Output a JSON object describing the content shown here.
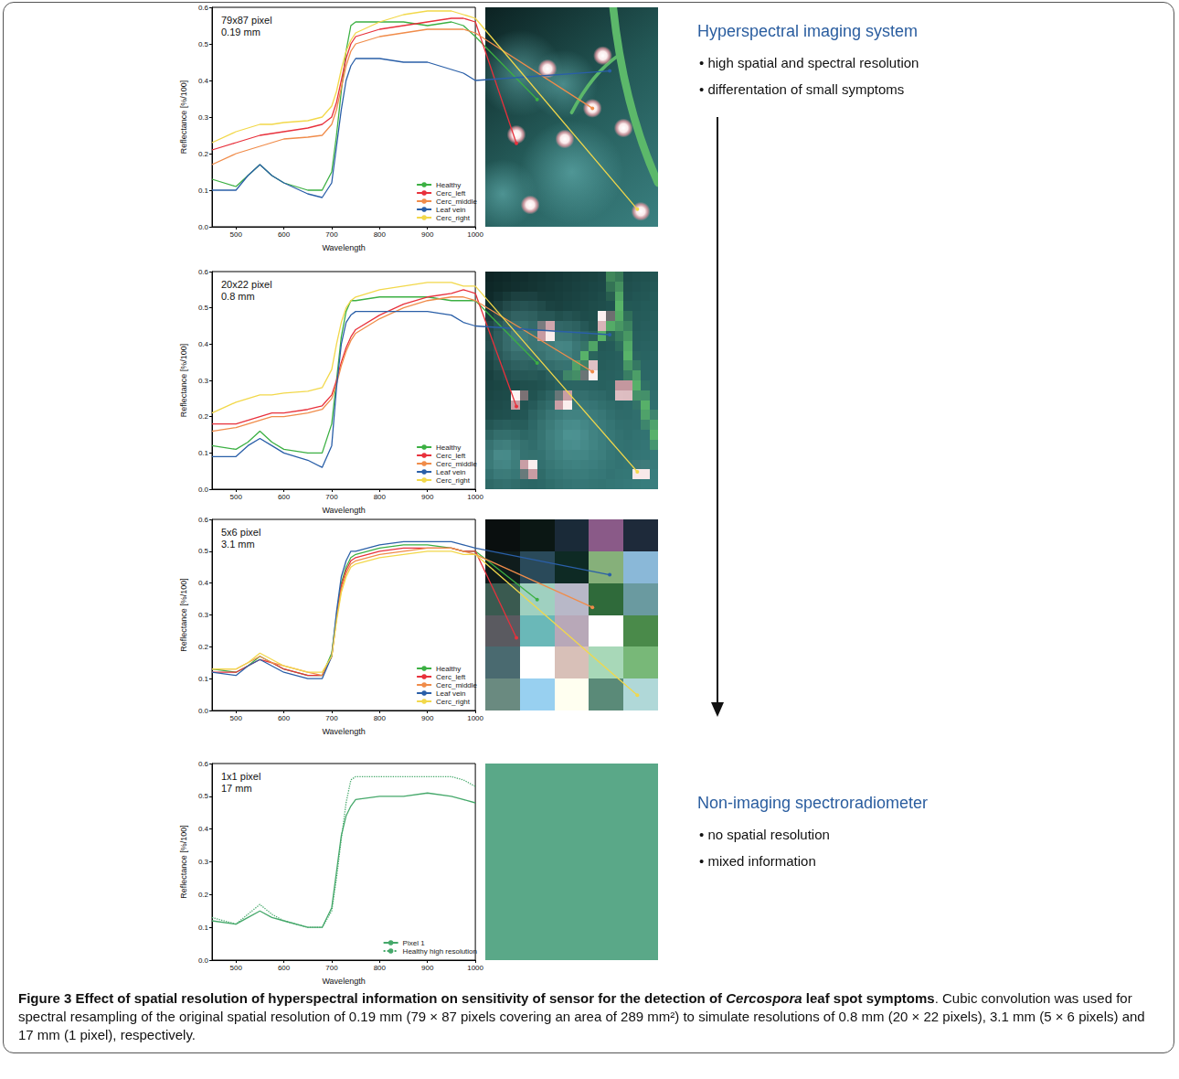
{
  "chart_data": [
    {
      "type": "line",
      "title": "79x87 pixel",
      "subtitle": "0.19 mm",
      "x_label": "Wavelength",
      "y_label": "Reflectance [%/100]",
      "x": [
        450,
        500,
        525,
        550,
        575,
        600,
        650,
        680,
        700,
        710,
        720,
        730,
        740,
        750,
        800,
        850,
        900,
        950,
        975,
        1000
      ],
      "series": [
        {
          "name": "Healthy",
          "color": "#3cb043",
          "values": [
            0.13,
            0.11,
            0.14,
            0.17,
            0.14,
            0.12,
            0.1,
            0.1,
            0.15,
            0.25,
            0.37,
            0.48,
            0.55,
            0.56,
            0.56,
            0.56,
            0.55,
            0.56,
            0.55,
            0.52
          ]
        },
        {
          "name": "Cerc_left",
          "color": "#e8313c",
          "values": [
            0.21,
            0.23,
            0.24,
            0.25,
            0.255,
            0.26,
            0.27,
            0.28,
            0.3,
            0.34,
            0.4,
            0.46,
            0.5,
            0.52,
            0.54,
            0.55,
            0.56,
            0.57,
            0.57,
            0.56
          ]
        },
        {
          "name": "Cerc_middle",
          "color": "#f08c4a",
          "values": [
            0.17,
            0.2,
            0.21,
            0.22,
            0.23,
            0.24,
            0.245,
            0.25,
            0.28,
            0.32,
            0.38,
            0.44,
            0.48,
            0.5,
            0.52,
            0.53,
            0.54,
            0.54,
            0.54,
            0.53
          ]
        },
        {
          "name": "Leaf vein",
          "color": "#2a5fa8",
          "values": [
            0.1,
            0.1,
            0.14,
            0.17,
            0.14,
            0.12,
            0.09,
            0.08,
            0.12,
            0.22,
            0.32,
            0.4,
            0.44,
            0.46,
            0.46,
            0.45,
            0.45,
            0.43,
            0.42,
            0.4
          ]
        },
        {
          "name": "Cerc_right",
          "color": "#f2d84a",
          "values": [
            0.23,
            0.26,
            0.27,
            0.28,
            0.28,
            0.285,
            0.29,
            0.3,
            0.33,
            0.37,
            0.43,
            0.48,
            0.51,
            0.53,
            0.56,
            0.58,
            0.59,
            0.59,
            0.58,
            0.57
          ]
        }
      ],
      "xlim": [
        450,
        1000
      ],
      "xticks": [
        500,
        600,
        700,
        800,
        900,
        1000
      ],
      "ylim": [
        0,
        0.6
      ],
      "yticks": [
        {
          "value": 0,
          "label": "0.0"
        },
        0.1,
        0.2,
        0.3,
        0.4,
        0.5,
        0.6
      ],
      "grid": false,
      "legend": "lower right"
    },
    {
      "type": "line",
      "title": "20x22 pixel",
      "subtitle": "0.8 mm",
      "x_label": "Wavelength",
      "y_label": "Reflectance [%/100]",
      "x": [
        450,
        500,
        525,
        550,
        575,
        600,
        650,
        680,
        700,
        710,
        720,
        730,
        740,
        750,
        800,
        850,
        900,
        950,
        975,
        1000
      ],
      "series": [
        {
          "name": "Healthy",
          "color": "#3cb043",
          "values": [
            0.12,
            0.11,
            0.13,
            0.16,
            0.13,
            0.11,
            0.1,
            0.1,
            0.18,
            0.3,
            0.42,
            0.49,
            0.52,
            0.52,
            0.53,
            0.53,
            0.53,
            0.52,
            0.52,
            0.52
          ]
        },
        {
          "name": "Cerc_left",
          "color": "#e8313c",
          "values": [
            0.18,
            0.18,
            0.19,
            0.2,
            0.21,
            0.21,
            0.22,
            0.23,
            0.26,
            0.3,
            0.35,
            0.39,
            0.42,
            0.44,
            0.48,
            0.51,
            0.53,
            0.54,
            0.55,
            0.54
          ]
        },
        {
          "name": "Cerc_middle",
          "color": "#f08c4a",
          "values": [
            0.16,
            0.17,
            0.18,
            0.19,
            0.2,
            0.2,
            0.21,
            0.22,
            0.25,
            0.29,
            0.34,
            0.38,
            0.41,
            0.43,
            0.47,
            0.5,
            0.52,
            0.53,
            0.53,
            0.52
          ]
        },
        {
          "name": "Leaf vein",
          "color": "#2a5fa8",
          "values": [
            0.09,
            0.09,
            0.12,
            0.14,
            0.12,
            0.1,
            0.08,
            0.06,
            0.12,
            0.28,
            0.4,
            0.46,
            0.48,
            0.49,
            0.49,
            0.49,
            0.49,
            0.48,
            0.46,
            0.45
          ]
        },
        {
          "name": "Cerc_right",
          "color": "#f2d84a",
          "values": [
            0.21,
            0.24,
            0.25,
            0.26,
            0.26,
            0.265,
            0.27,
            0.28,
            0.33,
            0.4,
            0.46,
            0.5,
            0.52,
            0.53,
            0.55,
            0.56,
            0.57,
            0.57,
            0.56,
            0.56
          ]
        }
      ],
      "xlim": [
        450,
        1000
      ],
      "xticks": [
        500,
        600,
        700,
        800,
        900,
        1000
      ],
      "ylim": [
        0,
        0.6
      ],
      "yticks": [
        {
          "value": 0,
          "label": "0.0"
        },
        0.1,
        0.2,
        0.3,
        0.4,
        0.5,
        0.6
      ],
      "grid": false,
      "legend": "lower right"
    },
    {
      "type": "line",
      "title": "5x6 pixel",
      "subtitle": "3.1 mm",
      "x_label": "Wavelength",
      "y_label": "Reflectance [%/100]",
      "x": [
        450,
        500,
        525,
        550,
        575,
        600,
        650,
        680,
        700,
        710,
        720,
        730,
        740,
        750,
        800,
        850,
        900,
        950,
        975,
        1000
      ],
      "series": [
        {
          "name": "Healthy",
          "color": "#3cb043",
          "values": [
            0.13,
            0.12,
            0.14,
            0.17,
            0.15,
            0.13,
            0.11,
            0.11,
            0.18,
            0.3,
            0.4,
            0.45,
            0.48,
            0.49,
            0.51,
            0.52,
            0.52,
            0.51,
            0.5,
            0.5
          ]
        },
        {
          "name": "Cerc_left",
          "color": "#e8313c",
          "values": [
            0.12,
            0.12,
            0.14,
            0.16,
            0.15,
            0.13,
            0.11,
            0.11,
            0.17,
            0.29,
            0.39,
            0.44,
            0.47,
            0.48,
            0.5,
            0.51,
            0.51,
            0.51,
            0.5,
            0.5
          ]
        },
        {
          "name": "Cerc_middle",
          "color": "#f08c4a",
          "values": [
            0.13,
            0.13,
            0.15,
            0.17,
            0.15,
            0.14,
            0.12,
            0.11,
            0.17,
            0.29,
            0.38,
            0.43,
            0.46,
            0.47,
            0.49,
            0.5,
            0.51,
            0.51,
            0.5,
            0.49
          ]
        },
        {
          "name": "Leaf vein",
          "color": "#2a5fa8",
          "values": [
            0.12,
            0.11,
            0.14,
            0.16,
            0.14,
            0.12,
            0.1,
            0.1,
            0.17,
            0.31,
            0.42,
            0.47,
            0.5,
            0.5,
            0.52,
            0.53,
            0.53,
            0.53,
            0.52,
            0.51
          ]
        },
        {
          "name": "Cerc_right",
          "color": "#f2d84a",
          "values": [
            0.13,
            0.13,
            0.15,
            0.18,
            0.16,
            0.14,
            0.12,
            0.12,
            0.17,
            0.28,
            0.37,
            0.42,
            0.45,
            0.46,
            0.48,
            0.49,
            0.5,
            0.5,
            0.49,
            0.49
          ]
        }
      ],
      "xlim": [
        450,
        1000
      ],
      "xticks": [
        500,
        600,
        700,
        800,
        900,
        1000
      ],
      "ylim": [
        0,
        0.6
      ],
      "yticks": [
        {
          "value": 0,
          "label": "0.0"
        },
        0.1,
        0.2,
        0.3,
        0.4,
        0.5,
        0.6
      ],
      "grid": false,
      "legend": "lower right"
    },
    {
      "type": "line",
      "title": "1x1 pixel",
      "subtitle": "17 mm",
      "x_label": "Wavelength",
      "y_label": "Reflectance [%/100]",
      "x": [
        450,
        500,
        525,
        550,
        575,
        600,
        650,
        680,
        700,
        710,
        720,
        730,
        740,
        750,
        800,
        850,
        900,
        950,
        975,
        1000
      ],
      "series": [
        {
          "name": "Pixel 1",
          "color": "#45a86a",
          "line_style": "solid",
          "values": [
            0.12,
            0.11,
            0.13,
            0.15,
            0.13,
            0.12,
            0.1,
            0.1,
            0.16,
            0.27,
            0.38,
            0.44,
            0.47,
            0.49,
            0.5,
            0.5,
            0.51,
            0.5,
            0.49,
            0.48
          ]
        },
        {
          "name": "Healthy high resolution",
          "color": "#45a86a",
          "line_style": "dotted",
          "values": [
            0.13,
            0.11,
            0.14,
            0.17,
            0.14,
            0.12,
            0.1,
            0.1,
            0.15,
            0.25,
            0.37,
            0.48,
            0.55,
            0.56,
            0.56,
            0.56,
            0.56,
            0.56,
            0.55,
            0.53
          ]
        }
      ],
      "xlim": [
        450,
        1000
      ],
      "xticks": [
        500,
        600,
        700,
        800,
        900,
        1000
      ],
      "ylim": [
        0,
        0.6
      ],
      "yticks": [
        {
          "value": 0,
          "label": "0.0"
        },
        0.1,
        0.2,
        0.3,
        0.4,
        0.5,
        0.6
      ],
      "grid": false,
      "legend": "lower right"
    }
  ],
  "pixel_grids": [
    {
      "colors": [
        [
          "#0a0f0f",
          "#0b1714",
          "#1a2a38",
          "#8a5a88",
          "#1e2a3a"
        ],
        [
          "#0f1c1c",
          "#2a4a5a",
          "#0e2a24",
          "#86b07a",
          "#8ab8d8"
        ],
        [
          "#3a5a50",
          "#9fd0c0",
          "#b8b8c8",
          "#2f6a3a",
          "#6a9aa0"
        ],
        [
          "#5a5a60",
          "#6ab8b8",
          "#b8a8b8",
          "#ffffff",
          "#4a8a4a"
        ],
        [
          "#4a6a70",
          "#ffffff",
          "#d8c0b8",
          "#a8d8b8",
          "#78b878"
        ],
        [
          "#6a8a80",
          "#98d0f0",
          "#fffff0",
          "#5a8a78",
          "#b0d8d8"
        ]
      ]
    },
    {
      "colors": [
        [
          "#5aa888"
        ]
      ]
    }
  ],
  "side_text": {
    "upper": {
      "heading": "Hyperspectral imaging system",
      "bullets": [
        "• high spatial and spectral resolution",
        "• differentation of small symptoms"
      ]
    },
    "lower": {
      "heading": "Non-imaging spectroradiometer",
      "bullets": [
        "• no spatial resolution",
        "• mixed information"
      ]
    }
  },
  "caption": [
    {
      "text": "Figure 3 Effect of spatial resolution of hyperspectral information on sensitivity of sensor for the detection of ",
      "style": "bold"
    },
    {
      "text": "Cercospora",
      "style": "bold-italic"
    },
    {
      "text": " leaf spot symptoms",
      "style": "bold"
    },
    {
      "text": ". Cubic convolution was used for spectral resampling of the original spatial resolution of 0.19 mm (79 × 87 pixels covering an area of 289 mm²) to simulate resolutions of 0.8 mm (20 × 22 pixels), 3.1 mm (5 × 6 pixels) and 17 mm (1 pixel), respectively.",
      "style": "normal"
    }
  ]
}
